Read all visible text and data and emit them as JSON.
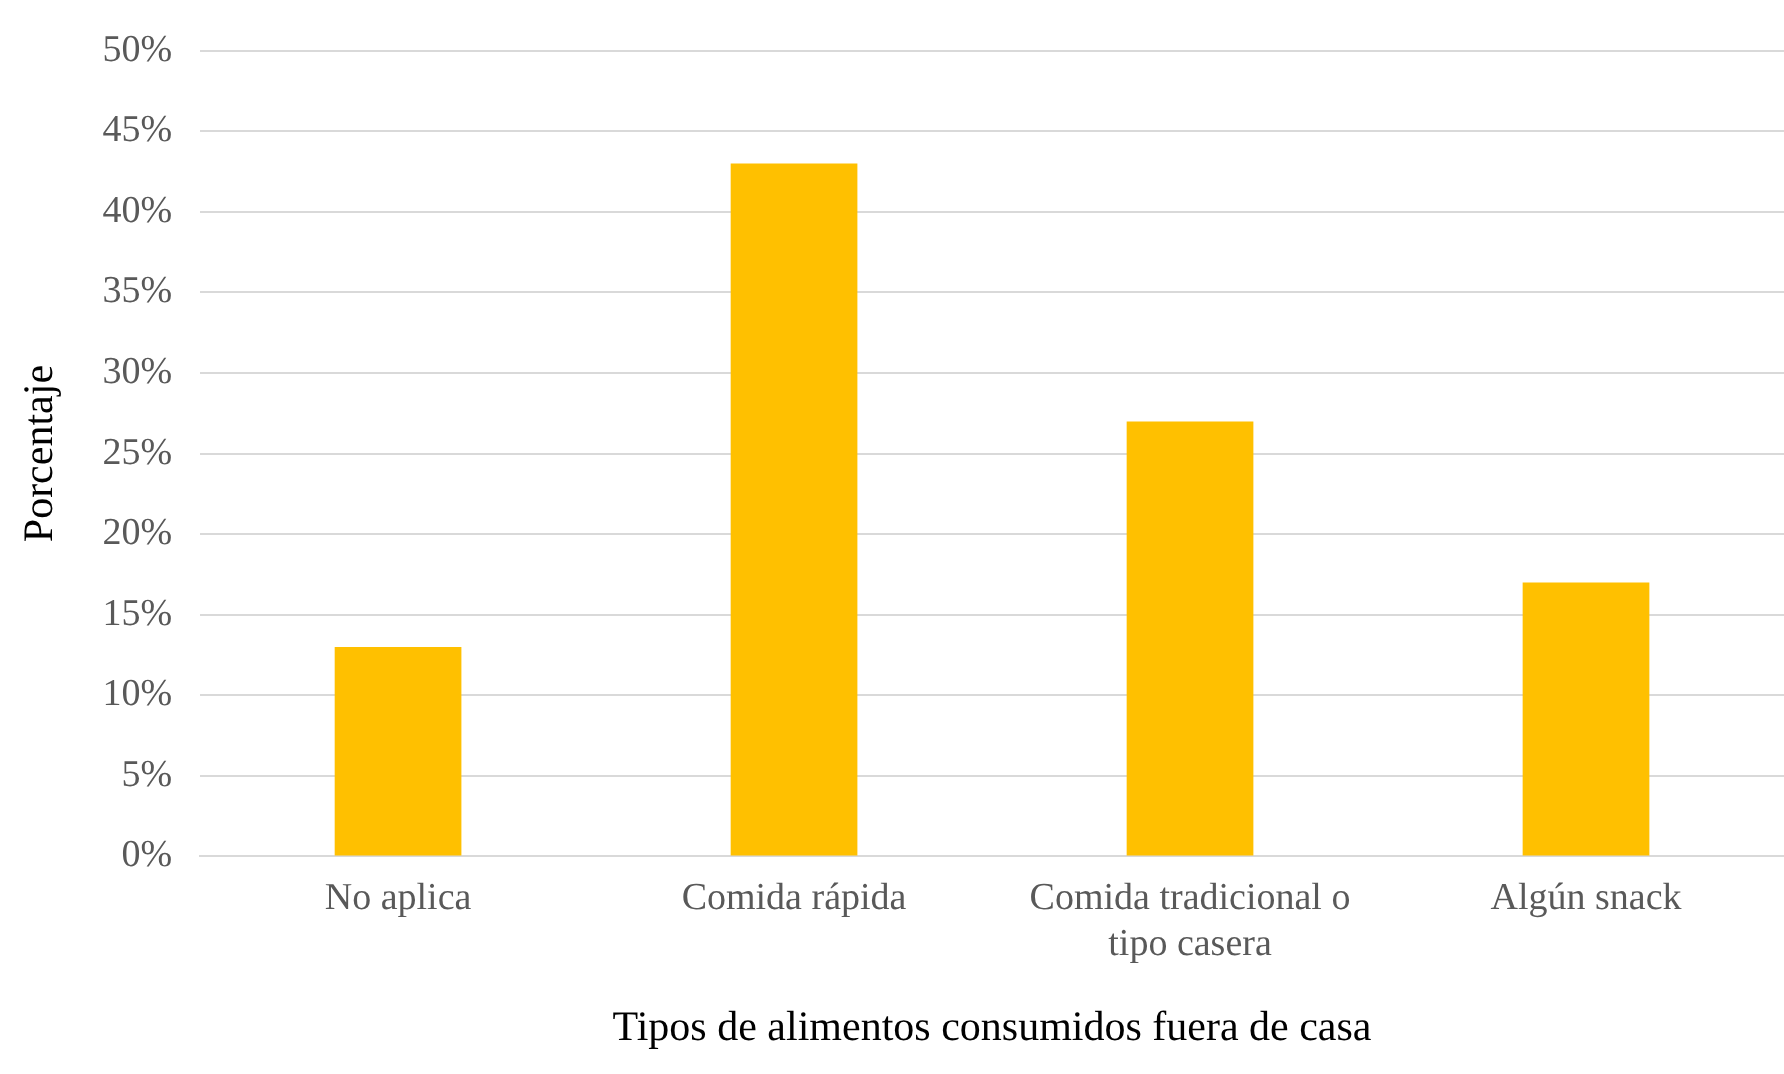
{
  "chart_data": {
    "type": "bar",
    "xlabel": "Tipos de alimentos consumidos fuera de casa",
    "ylabel": "Porcentaje",
    "categories": [
      "No aplica",
      "Comida rápida",
      "Comida tradicional o tipo casera",
      "Algún snack"
    ],
    "values": [
      13,
      43,
      27,
      17
    ],
    "color": "#ffc000",
    "ylim": [
      0,
      50
    ],
    "yticks": [
      {
        "value": 0,
        "label": "0%"
      },
      {
        "value": 5,
        "label": "5%"
      },
      {
        "value": 10,
        "label": "10%"
      },
      {
        "value": 15,
        "label": "15%"
      },
      {
        "value": 20,
        "label": "20%"
      },
      {
        "value": 25,
        "label": "25%"
      },
      {
        "value": 30,
        "label": "30%"
      },
      {
        "value": 35,
        "label": "35%"
      },
      {
        "value": 40,
        "label": "40%"
      },
      {
        "value": 45,
        "label": "45%"
      },
      {
        "value": 50,
        "label": "50%"
      }
    ],
    "grid": "y"
  }
}
